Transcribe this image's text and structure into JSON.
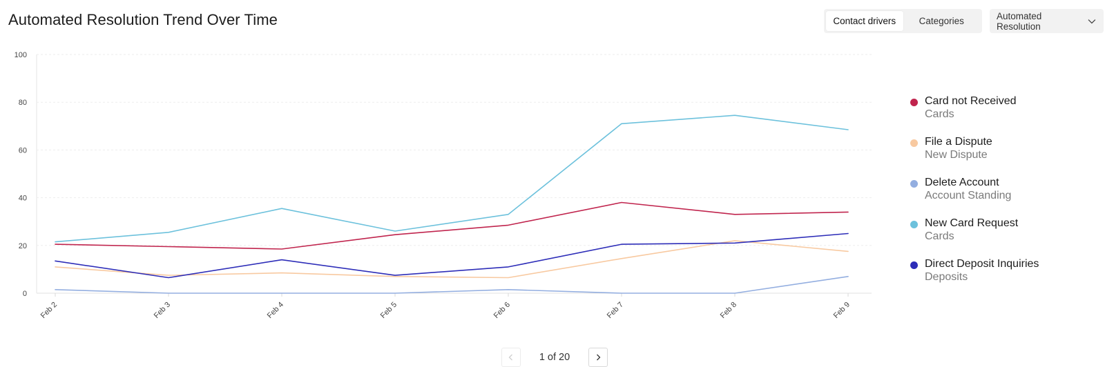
{
  "header": {
    "title": "Automated Resolution Trend Over Time",
    "view_toggle": {
      "options": [
        "Contact drivers",
        "Categories"
      ],
      "selected": "Contact drivers"
    },
    "metric_select": {
      "value": "Automated Resolution",
      "icon": "chevron-down-icon"
    }
  },
  "chart_data": {
    "type": "line",
    "title": "Automated Resolution Trend Over Time",
    "xlabel": "",
    "ylabel": "",
    "x": [
      "Feb 2",
      "Feb 3",
      "Feb 4",
      "Feb 5",
      "Feb 6",
      "Feb 7",
      "Feb 8",
      "Feb 9"
    ],
    "ylim": [
      0,
      100
    ],
    "yticks": [
      0,
      20,
      40,
      60,
      80,
      100
    ],
    "grid": true,
    "legend_position": "right",
    "series": [
      {
        "name": "Card not Received",
        "group": "Cards",
        "color": "#c0244d",
        "values": [
          20.5,
          19.5,
          18.5,
          24.5,
          28.5,
          38,
          33,
          34
        ]
      },
      {
        "name": "File a Dispute",
        "group": "New Dispute",
        "color": "#f8c9a0",
        "values": [
          11,
          7.5,
          8.5,
          7,
          6.5,
          14.5,
          22,
          17.5
        ]
      },
      {
        "name": "Delete Account",
        "group": "Account Standing",
        "color": "#93aee0",
        "values": [
          1.5,
          0,
          0,
          0,
          1.5,
          0,
          0,
          7
        ]
      },
      {
        "name": "New Card Request",
        "group": "Cards",
        "color": "#6cc1dc",
        "values": [
          21.5,
          25.5,
          35.5,
          26,
          33,
          71,
          74.5,
          68.5
        ]
      },
      {
        "name": "Direct Deposit Inquiries",
        "group": "Deposits",
        "color": "#2d2db8",
        "values": [
          13.5,
          6.5,
          14,
          7.5,
          11,
          20.5,
          21,
          25
        ]
      }
    ]
  },
  "pagination": {
    "label": "1 of 20",
    "prev_icon": "chevron-left-icon",
    "next_icon": "chevron-right-icon",
    "prev_disabled": true
  }
}
